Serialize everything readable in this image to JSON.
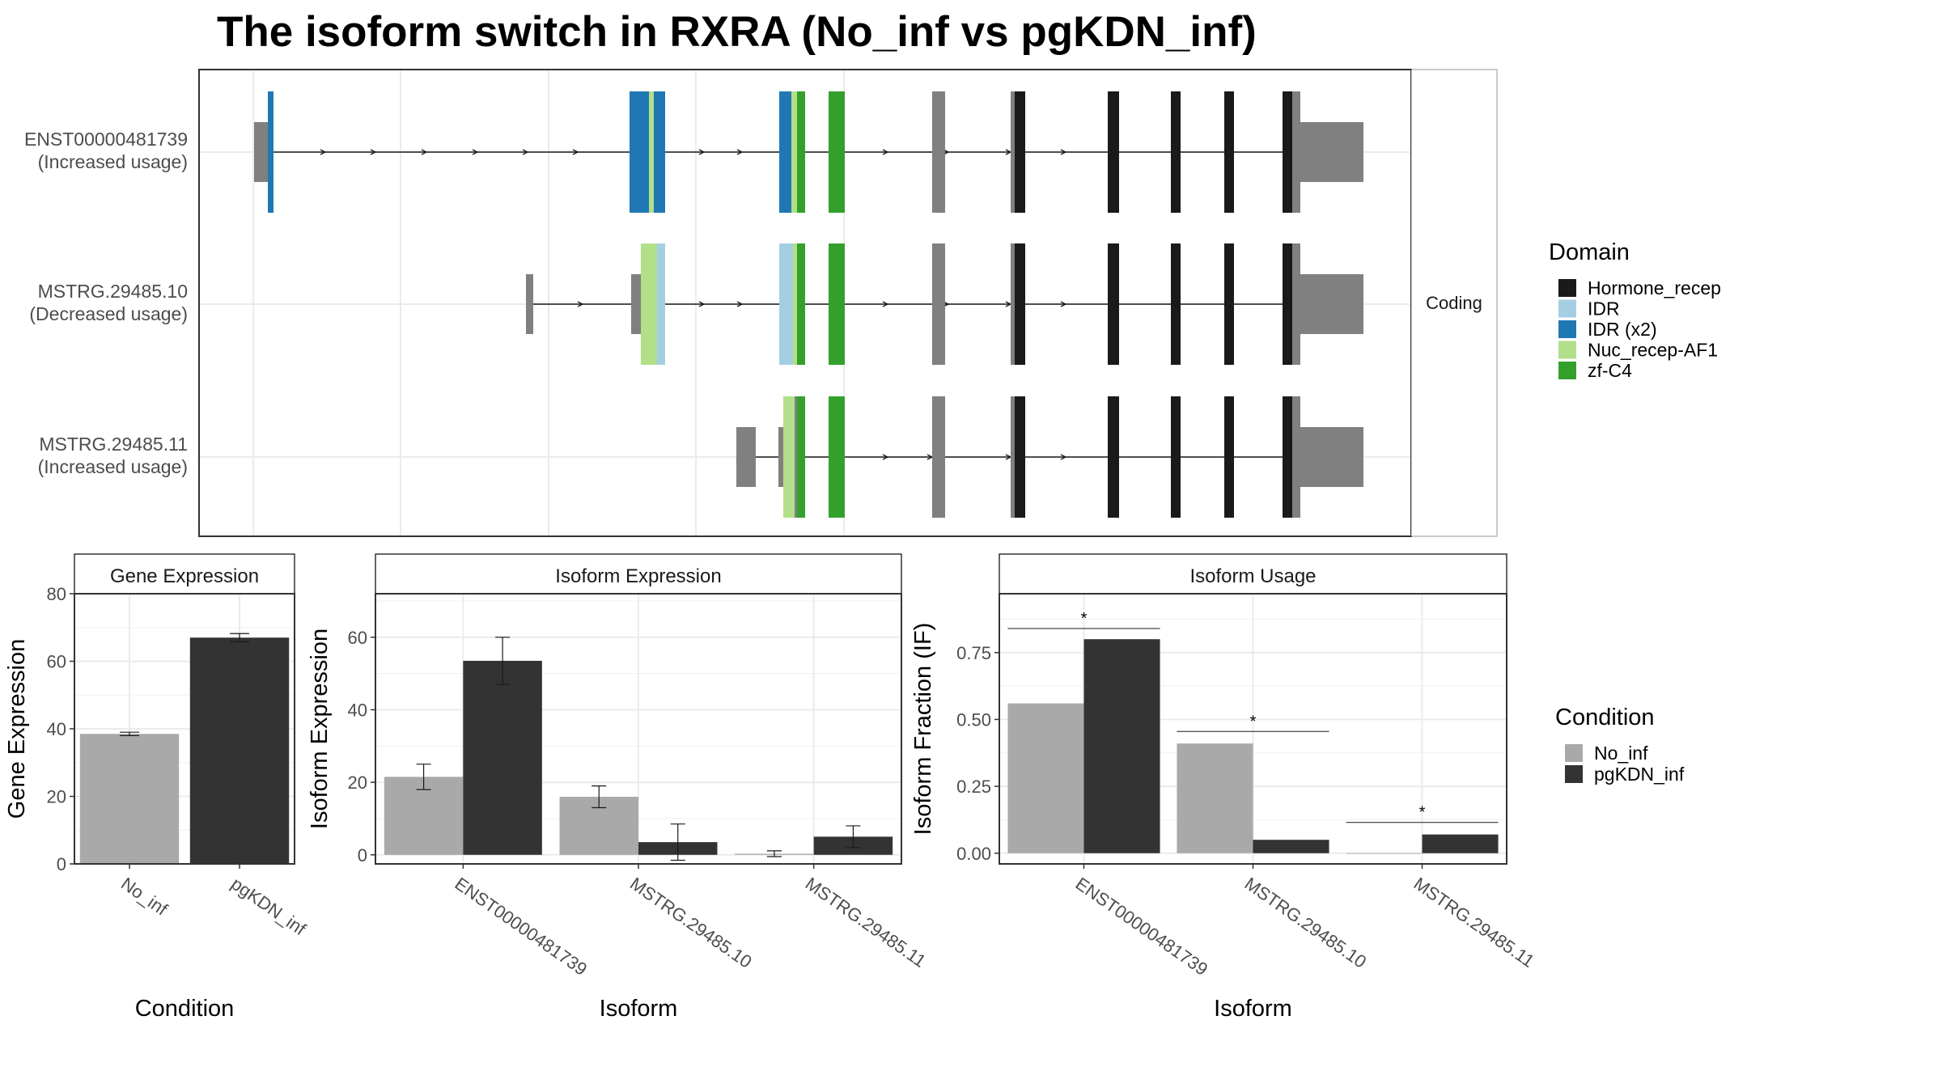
{
  "title": "The isoform switch in RXRA (No_inf vs pgKDN_inf)",
  "colors": {
    "Hormone_recep": "#1a1a1a",
    "IDR": "#a6cee3",
    "IDR (x2)": "#1f78b4",
    "Nuc_recep-AF1": "#b2df8a",
    "zf-C4": "#33a02c",
    "exon": "#808080",
    "No_inf": "#a9a9a9",
    "pgKDN_inf": "#333333",
    "border": "#333333",
    "grid": "#ebebeb",
    "strip_bg": "#ffffff"
  },
  "structure": {
    "strip_label": "Coding",
    "transcripts": [
      {
        "id": "ENST00000481739",
        "note": "(Increased usage)"
      },
      {
        "id": "MSTRG.29485.10",
        "note": "(Decreased usage)"
      },
      {
        "id": "MSTRG.29485.11",
        "note": "(Increased usage)"
      }
    ],
    "domain_legend": {
      "title": "Domain",
      "items": [
        "Hormone_recep",
        "IDR",
        "IDR (x2)",
        "Nuc_recep-AF1",
        "zf-C4"
      ]
    }
  },
  "condition_legend": {
    "title": "Condition",
    "items": [
      "No_inf",
      "pgKDN_inf"
    ]
  },
  "chart_data": [
    {
      "type": "bar",
      "title": "Gene Expression",
      "xlabel": "Condition",
      "ylabel": "Gene Expression",
      "categories": [
        "No_inf",
        "pgKDN_inf"
      ],
      "values": [
        38.5,
        67
      ],
      "errors": [
        0.5,
        1.2
      ],
      "ylim": [
        0,
        80
      ],
      "yticks": [
        0,
        20,
        40,
        60,
        80
      ],
      "ytick_labels": [
        "0",
        "20",
        "40",
        "60",
        "80"
      ],
      "grid": true
    },
    {
      "type": "bar",
      "title": "Isoform Expression",
      "xlabel": "Isoform",
      "ylabel": "Isoform Expression",
      "categories": [
        "ENST00000481739",
        "MSTRG.29485.10",
        "MSTRG.29485.11"
      ],
      "series": [
        {
          "name": "No_inf",
          "values": [
            21.5,
            16,
            0.3
          ],
          "errors": [
            3.5,
            3,
            0.8
          ]
        },
        {
          "name": "pgKDN_inf",
          "values": [
            53.5,
            3.5,
            5
          ],
          "errors": [
            6.5,
            5,
            3
          ]
        }
      ],
      "ylim": [
        -2.5,
        72
      ],
      "yticks": [
        0,
        20,
        40,
        60
      ],
      "ytick_labels": [
        "0",
        "20",
        "40",
        "60"
      ],
      "grid": true
    },
    {
      "type": "bar",
      "title": "Isoform Usage",
      "xlabel": "Isoform",
      "ylabel": "Isoform Fraction (IF)",
      "categories": [
        "ENST00000481739",
        "MSTRG.29485.10",
        "MSTRG.29485.11"
      ],
      "series": [
        {
          "name": "No_inf",
          "values": [
            0.56,
            0.41,
            0.0
          ]
        },
        {
          "name": "pgKDN_inf",
          "values": [
            0.8,
            0.05,
            0.07
          ]
        }
      ],
      "significance": [
        "*",
        "*",
        "*"
      ],
      "sig_y": [
        0.84,
        0.455,
        0.115
      ],
      "ylim": [
        -0.04,
        0.97
      ],
      "yticks": [
        0,
        0.25,
        0.5,
        0.75
      ],
      "ytick_labels": [
        "0.00",
        "0.25",
        "0.50",
        "0.75"
      ],
      "grid": true
    }
  ]
}
